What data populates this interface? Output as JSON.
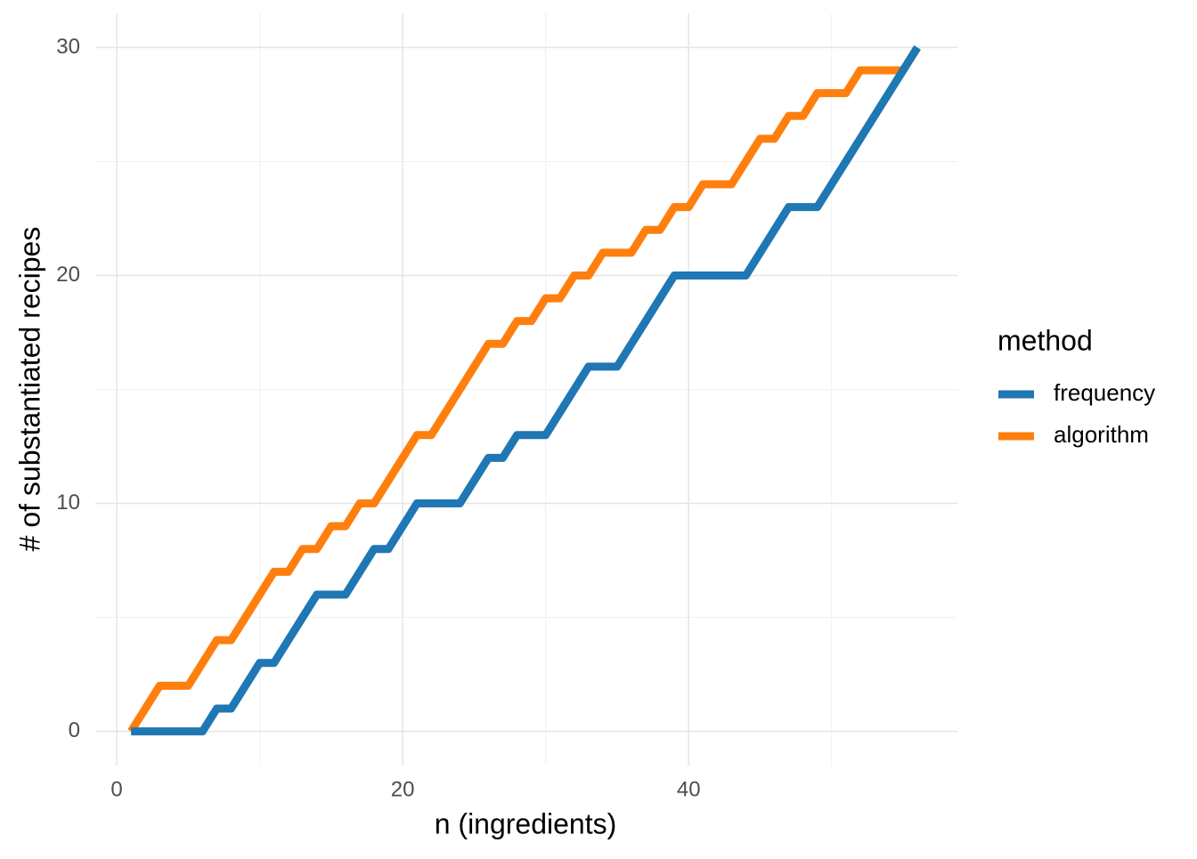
{
  "chart_data": {
    "type": "line",
    "x_label": "n (ingredients)",
    "y_label": "# of substantiated recipes",
    "x": [
      1,
      2,
      3,
      4,
      5,
      6,
      7,
      8,
      9,
      10,
      11,
      12,
      13,
      14,
      15,
      16,
      17,
      18,
      19,
      20,
      21,
      22,
      23,
      24,
      25,
      26,
      27,
      28,
      29,
      30,
      31,
      32,
      33,
      34,
      35,
      36,
      37,
      38,
      39,
      40,
      41,
      42,
      43,
      44,
      45,
      46,
      47,
      48,
      49,
      50,
      51,
      52,
      53,
      54,
      55,
      56
    ],
    "series": [
      {
        "name": "frequency",
        "color": "#1f77b4",
        "values": [
          0,
          0,
          0,
          0,
          0,
          0,
          1,
          1,
          2,
          3,
          3,
          4,
          5,
          6,
          6,
          6,
          7,
          8,
          8,
          9,
          10,
          10,
          10,
          10,
          11,
          12,
          12,
          13,
          13,
          13,
          14,
          15,
          16,
          16,
          16,
          17,
          18,
          19,
          20,
          20,
          20,
          20,
          20,
          20,
          21,
          22,
          23,
          23,
          23,
          24,
          25,
          26,
          27,
          28,
          29,
          30
        ]
      },
      {
        "name": "algorithm",
        "color": "#ff7f0e",
        "values": [
          0,
          1,
          2,
          2,
          2,
          3,
          4,
          4,
          5,
          6,
          7,
          7,
          8,
          8,
          9,
          9,
          10,
          10,
          11,
          12,
          13,
          13,
          14,
          15,
          16,
          17,
          17,
          18,
          18,
          19,
          19,
          20,
          20,
          21,
          21,
          21,
          22,
          22,
          23,
          23,
          24,
          24,
          24,
          25,
          26,
          26,
          27,
          27,
          28,
          28,
          28,
          29,
          29,
          29,
          29,
          30
        ]
      }
    ],
    "legend_title": "method",
    "legend_position": "right",
    "xlim": [
      -1.5,
      58.8
    ],
    "ylim": [
      -1.5,
      31.5
    ],
    "xticks": [
      0,
      20,
      40
    ],
    "yticks": [
      0,
      10,
      20,
      30
    ],
    "x_minor": [
      10,
      30,
      50
    ],
    "y_minor": [
      5,
      15,
      25
    ],
    "grid": true
  }
}
